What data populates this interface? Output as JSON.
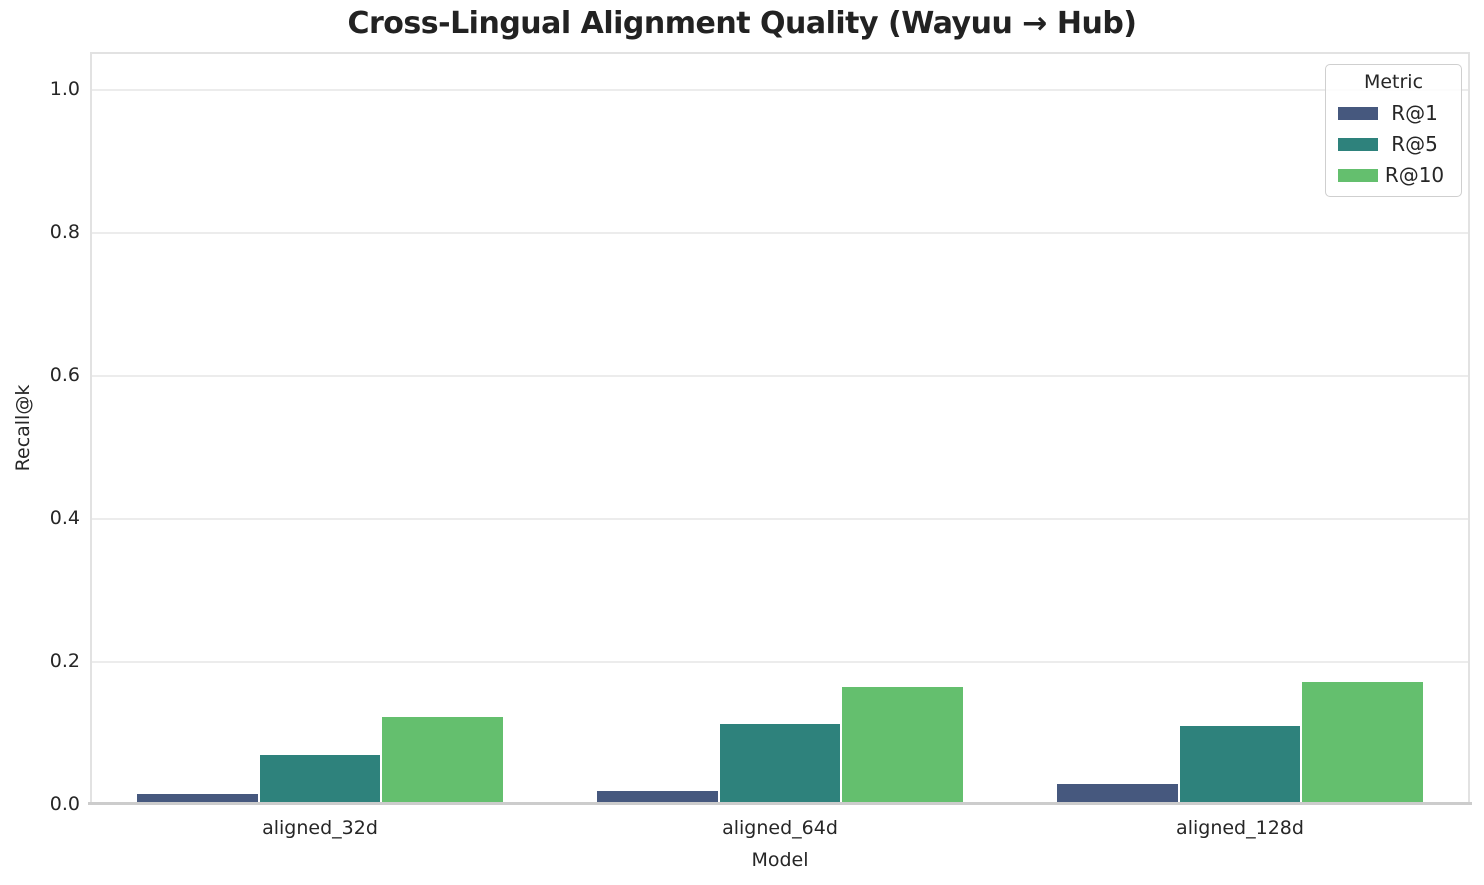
{
  "figure": {
    "title": "Cross-Lingual Alignment Quality (Wayuu → Hub)"
  },
  "chart_data": {
    "type": "bar",
    "title": "Cross-Lingual Alignment Quality (Wayuu → Hub)",
    "xlabel": "Model",
    "ylabel": "Recall@k",
    "categories": [
      "aligned_32d",
      "aligned_64d",
      "aligned_128d"
    ],
    "series": [
      {
        "name": "R@1",
        "color": "#46587E",
        "values": [
          0.016,
          0.02,
          0.03
        ]
      },
      {
        "name": "R@5",
        "color": "#2E827C",
        "values": [
          0.07,
          0.113,
          0.111
        ]
      },
      {
        "name": "R@10",
        "color": "#64BF6E",
        "values": [
          0.123,
          0.165,
          0.172
        ]
      }
    ],
    "ylim": [
      0,
      1.05
    ],
    "yticks": [
      "0.0",
      "0.2",
      "0.4",
      "0.6",
      "0.8",
      "1.0"
    ],
    "grid": true,
    "legend": {
      "title": "Metric",
      "position": "upper right"
    }
  },
  "colors": {
    "grid": "#ECECEC",
    "spine": "#E2E2E2",
    "axis_line": "#CCCCCC",
    "text": "#262626",
    "background": "#FFFFFF"
  }
}
